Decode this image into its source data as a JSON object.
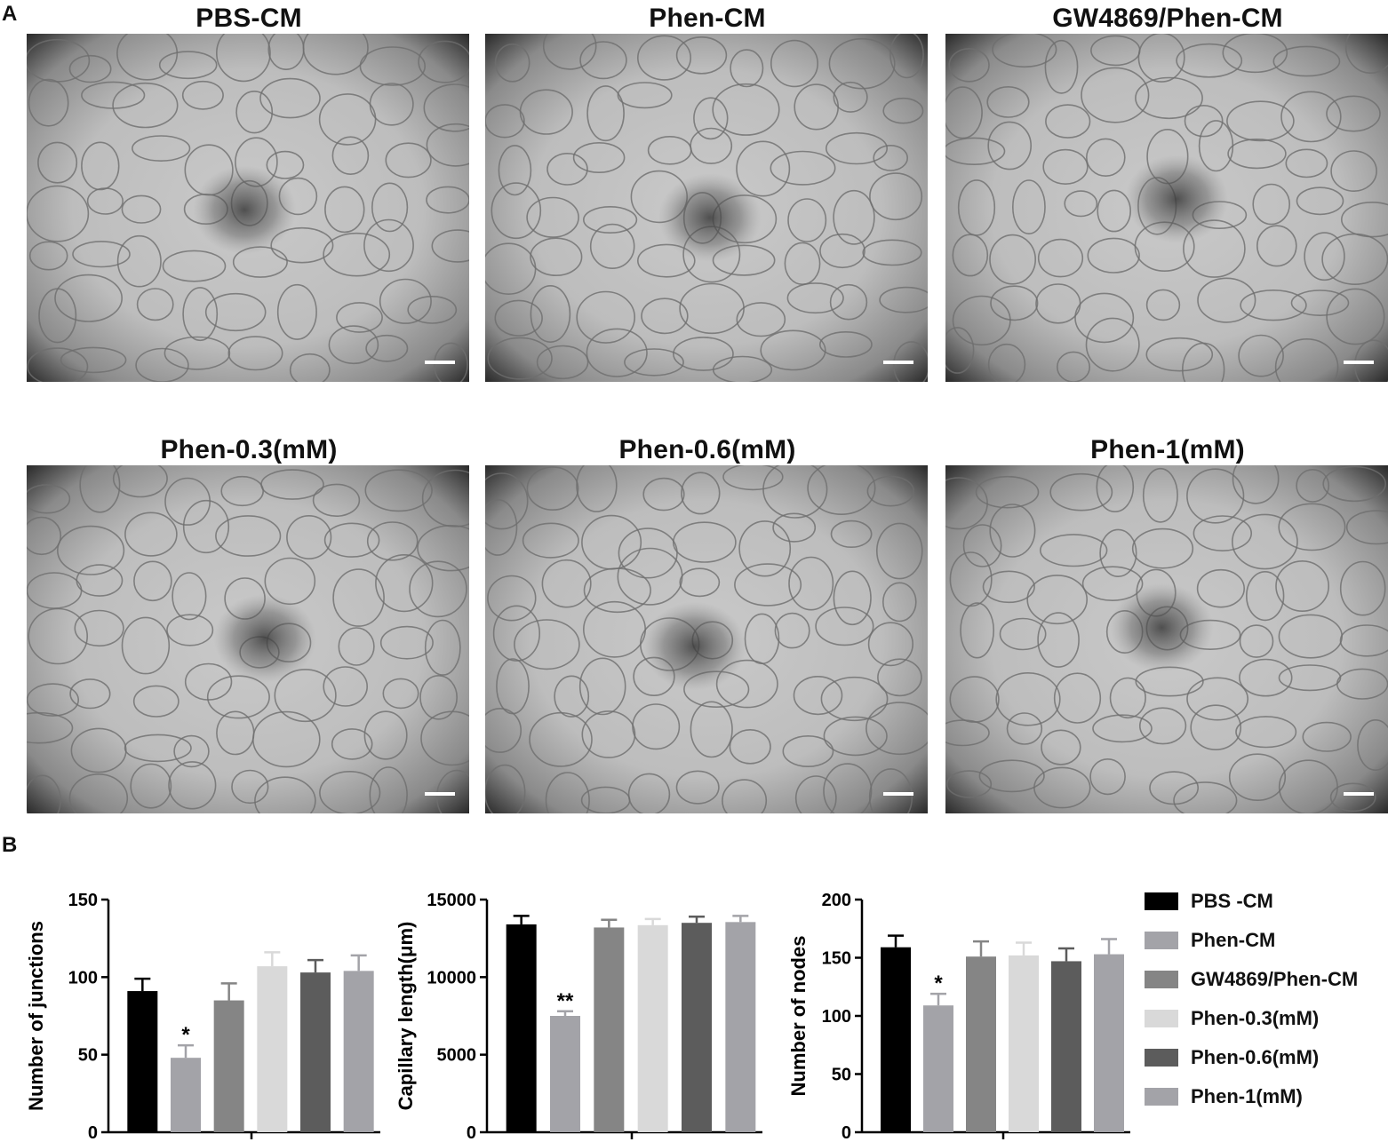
{
  "panel_a_label": "A",
  "panel_b_label": "B",
  "images": [
    {
      "title": "PBS-CM"
    },
    {
      "title": "Phen-CM"
    },
    {
      "title": "GW4869/Phen-CM"
    },
    {
      "title": "Phen-0.3(mM)"
    },
    {
      "title": "Phen-0.6(mM)"
    },
    {
      "title": "Phen-1(mM)"
    }
  ],
  "colors": {
    "PBS -CM": "#000000",
    "Phen-CM": "#a3a3a8",
    "GW4869/Phen-CM": "#858585",
    "Phen-0.3(mM)": "#d9d9d9",
    "Phen-0.6(mM)": "#5c5c5c",
    "Phen-1(mM)": "#a3a3a8"
  },
  "chart_data": [
    {
      "type": "bar",
      "ylabel": "Number of junctions",
      "ylim": [
        0,
        150
      ],
      "yticks": [
        0,
        50,
        100,
        150
      ],
      "categories": [
        "PBS -CM",
        "Phen-CM",
        "GW4869/Phen-CM",
        "Phen-0.3(mM)",
        "Phen-0.6(mM)",
        "Phen-1(mM)"
      ],
      "values": [
        91,
        48,
        85,
        107,
        103,
        104
      ],
      "errors": [
        8,
        8,
        11,
        9,
        8,
        10
      ],
      "annotations": [
        "",
        "*",
        "",
        "",
        "",
        ""
      ]
    },
    {
      "type": "bar",
      "ylabel": "Capillary length(μm)",
      "ylim": [
        0,
        15000
      ],
      "yticks": [
        0,
        5000,
        10000,
        15000
      ],
      "categories": [
        "PBS -CM",
        "Phen-CM",
        "GW4869/Phen-CM",
        "Phen-0.3(mM)",
        "Phen-0.6(mM)",
        "Phen-1(mM)"
      ],
      "values": [
        13400,
        7500,
        13200,
        13350,
        13500,
        13550
      ],
      "errors": [
        550,
        300,
        500,
        400,
        400,
        400
      ],
      "annotations": [
        "",
        "**",
        "",
        "",
        "",
        ""
      ]
    },
    {
      "type": "bar",
      "ylabel": "Number of nodes",
      "ylim": [
        0,
        200
      ],
      "yticks": [
        0,
        50,
        100,
        150,
        200
      ],
      "categories": [
        "PBS -CM",
        "Phen-CM",
        "GW4869/Phen-CM",
        "Phen-0.3(mM)",
        "Phen-0.6(mM)",
        "Phen-1(mM)"
      ],
      "values": [
        159,
        109,
        151,
        152,
        147,
        153
      ],
      "errors": [
        10,
        10,
        13,
        11,
        11,
        13
      ],
      "annotations": [
        "",
        "*",
        "",
        "",
        "",
        ""
      ]
    }
  ],
  "legend": [
    {
      "label": "PBS -CM"
    },
    {
      "label": "Phen-CM"
    },
    {
      "label": "GW4869/Phen-CM"
    },
    {
      "label": "Phen-0.3(mM)"
    },
    {
      "label": "Phen-0.6(mM)"
    },
    {
      "label": "Phen-1(mM)"
    }
  ]
}
